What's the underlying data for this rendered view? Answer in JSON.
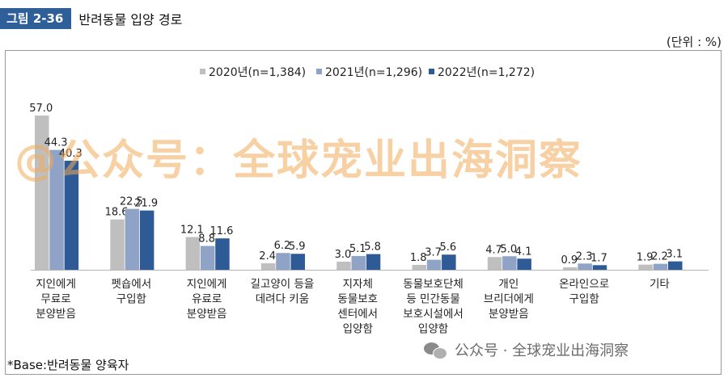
{
  "figure": {
    "badge": "그림 2-36",
    "title": "반려동물 입양 경로",
    "unit": "(단위 : %)"
  },
  "footnote": "*Base:반려동물 양육자",
  "watermark": "@公众号：全球宠业出海洞察",
  "credit": {
    "text": "公众号 · 全球宠业出海洞察",
    "icon": "wechat-icon"
  },
  "colors": {
    "s2020": "#bfbfbf",
    "s2021": "#8ea3c6",
    "s2022": "#2e5b95"
  },
  "chart_data": {
    "type": "bar",
    "title": "반려동물 입양 경로",
    "xlabel": "",
    "ylabel": "",
    "ylim": [
      0,
      60
    ],
    "grid": false,
    "legend": "top-center",
    "categories": [
      "지인에게 무료로 분양받음",
      "펫숍에서 구입함",
      "지인에게 유료로 분양받음",
      "길고양이 등을 데려다 키움",
      "지자체 동물보호 센터에서 입양함",
      "동물보호단체 등 민간동물 보호시설에서 입양함",
      "개인 브리더에게 분양받음",
      "온라인으로 구입함",
      "기타"
    ],
    "category_lines": [
      [
        "지인에게",
        "무료로",
        "분양받음"
      ],
      [
        "펫숍에서",
        "구입함"
      ],
      [
        "지인에게",
        "유료로",
        "분양받음"
      ],
      [
        "길고양이 등을",
        "데려다 키움"
      ],
      [
        "지자체",
        "동물보호",
        "센터에서",
        "입양함"
      ],
      [
        "동물보호단체",
        "등 민간동물",
        "보호시설에서",
        "입양함"
      ],
      [
        "개인",
        "브리더에게",
        "분양받음"
      ],
      [
        "온라인으로",
        "구입함"
      ],
      [
        "기타"
      ]
    ],
    "series": [
      {
        "name": "2020년(n=1,384)",
        "values": [
          57.0,
          18.6,
          12.1,
          2.4,
          3.0,
          1.8,
          4.7,
          0.9,
          1.9
        ]
      },
      {
        "name": "2021년(n=1,296)",
        "values": [
          44.3,
          22.5,
          8.8,
          6.2,
          5.1,
          3.7,
          5.0,
          2.3,
          2.2
        ]
      },
      {
        "name": "2022년(n=1,272)",
        "values": [
          40.3,
          21.9,
          11.6,
          5.9,
          5.8,
          5.6,
          4.1,
          1.7,
          3.1
        ]
      }
    ]
  }
}
